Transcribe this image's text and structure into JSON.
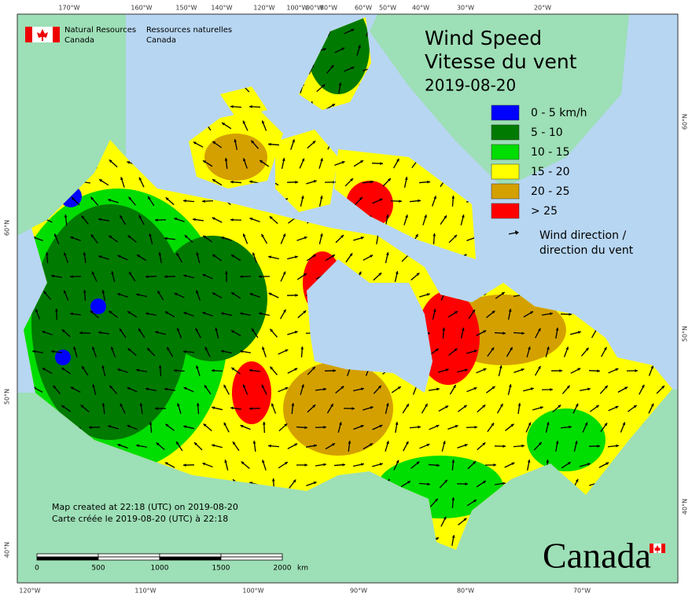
{
  "header": {
    "agency_en": [
      "Natural Resources",
      "Canada"
    ],
    "agency_fr": [
      "Ressources naturelles",
      "Canada"
    ]
  },
  "title": {
    "lines": [
      "Wind Speed",
      "Vitesse du vent"
    ],
    "date": "2019-08-20"
  },
  "legend": {
    "items": [
      {
        "label": "0 - 5 km/h",
        "color": "#0000ff"
      },
      {
        "label": "5 - 10",
        "color": "#007a00"
      },
      {
        "label": "10 - 15",
        "color": "#00dd00"
      },
      {
        "label": "15 - 20",
        "color": "#ffff00"
      },
      {
        "label": "20 - 25",
        "color": "#d4a000"
      },
      {
        "label": "> 25",
        "color": "#ff0000"
      }
    ],
    "arrow_label": [
      "Wind direction /",
      "direction du vent"
    ]
  },
  "graticule": {
    "top": [
      "170°W",
      "160°W",
      "150°W",
      "140°W",
      "120°W",
      "100°W",
      "90°W",
      "80°W",
      "60°W",
      "50°W",
      "40°W",
      "30°W",
      "20°W"
    ],
    "bottom": [
      "120°W",
      "110°W",
      "100°W",
      "90°W",
      "80°W",
      "70°W"
    ],
    "left": [
      "60°N",
      "50°N",
      "40°N"
    ],
    "right": [
      "60°N",
      "50°N",
      "40°N"
    ]
  },
  "footer": {
    "lines": [
      "Map created at 22:18 (UTC) on 2019-08-20",
      "Carte créée le 2019-08-20 (UTC) à 22:18"
    ]
  },
  "scale_bar": {
    "labels": [
      "0",
      "500",
      "1000",
      "1500",
      "2000"
    ],
    "unit": "km"
  },
  "wordmark": "Canada"
}
